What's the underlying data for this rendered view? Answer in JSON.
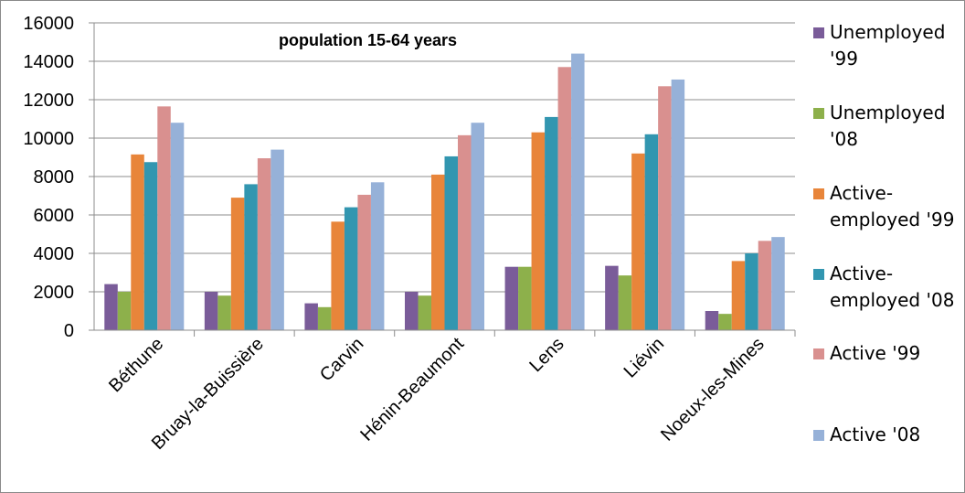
{
  "chart_data": {
    "type": "bar",
    "title": "population  15-64 years",
    "xlabel": "",
    "ylabel": "",
    "ylim": [
      0,
      16000
    ],
    "yticks": [
      0,
      2000,
      4000,
      6000,
      8000,
      10000,
      12000,
      14000,
      16000
    ],
    "grid": true,
    "legend_position": "right",
    "categories": [
      "Béthune",
      "Bruay-la-Buissière",
      "Carvin",
      "Hénin-Beaumont",
      "Lens",
      "Liévin",
      "Noeux-les-Mines"
    ],
    "series": [
      {
        "name": "Unemployed '99",
        "legend_lines": [
          "Unemployed",
          "'99"
        ],
        "color": "#7a5c99",
        "values": [
          2400,
          2000,
          1400,
          2000,
          3300,
          3350,
          1000
        ]
      },
      {
        "name": "Unemployed '08",
        "legend_lines": [
          "Unemployed",
          "'08"
        ],
        "color": "#8db04b",
        "values": [
          2000,
          1800,
          1200,
          1800,
          3300,
          2850,
          850
        ]
      },
      {
        "name": "Active-employed '99",
        "legend_lines": [
          "Active-",
          "employed '99"
        ],
        "color": "#e8853a",
        "values": [
          9150,
          6900,
          5650,
          8100,
          10300,
          9200,
          3600
        ]
      },
      {
        "name": "Active-employed '08",
        "legend_lines": [
          "Active-",
          "employed '08"
        ],
        "color": "#3296b0",
        "values": [
          8750,
          7600,
          6400,
          9050,
          11100,
          10200,
          4000
        ]
      },
      {
        "name": "Active '99",
        "legend_lines": [
          "Active '99"
        ],
        "color": "#d9908f",
        "values": [
          11650,
          8950,
          7050,
          10150,
          13700,
          12700,
          4650
        ]
      },
      {
        "name": "Active '08",
        "legend_lines": [
          "Active '08"
        ],
        "color": "#96b1d8",
        "values": [
          10800,
          9400,
          7700,
          10800,
          14400,
          13050,
          4850
        ]
      }
    ]
  }
}
